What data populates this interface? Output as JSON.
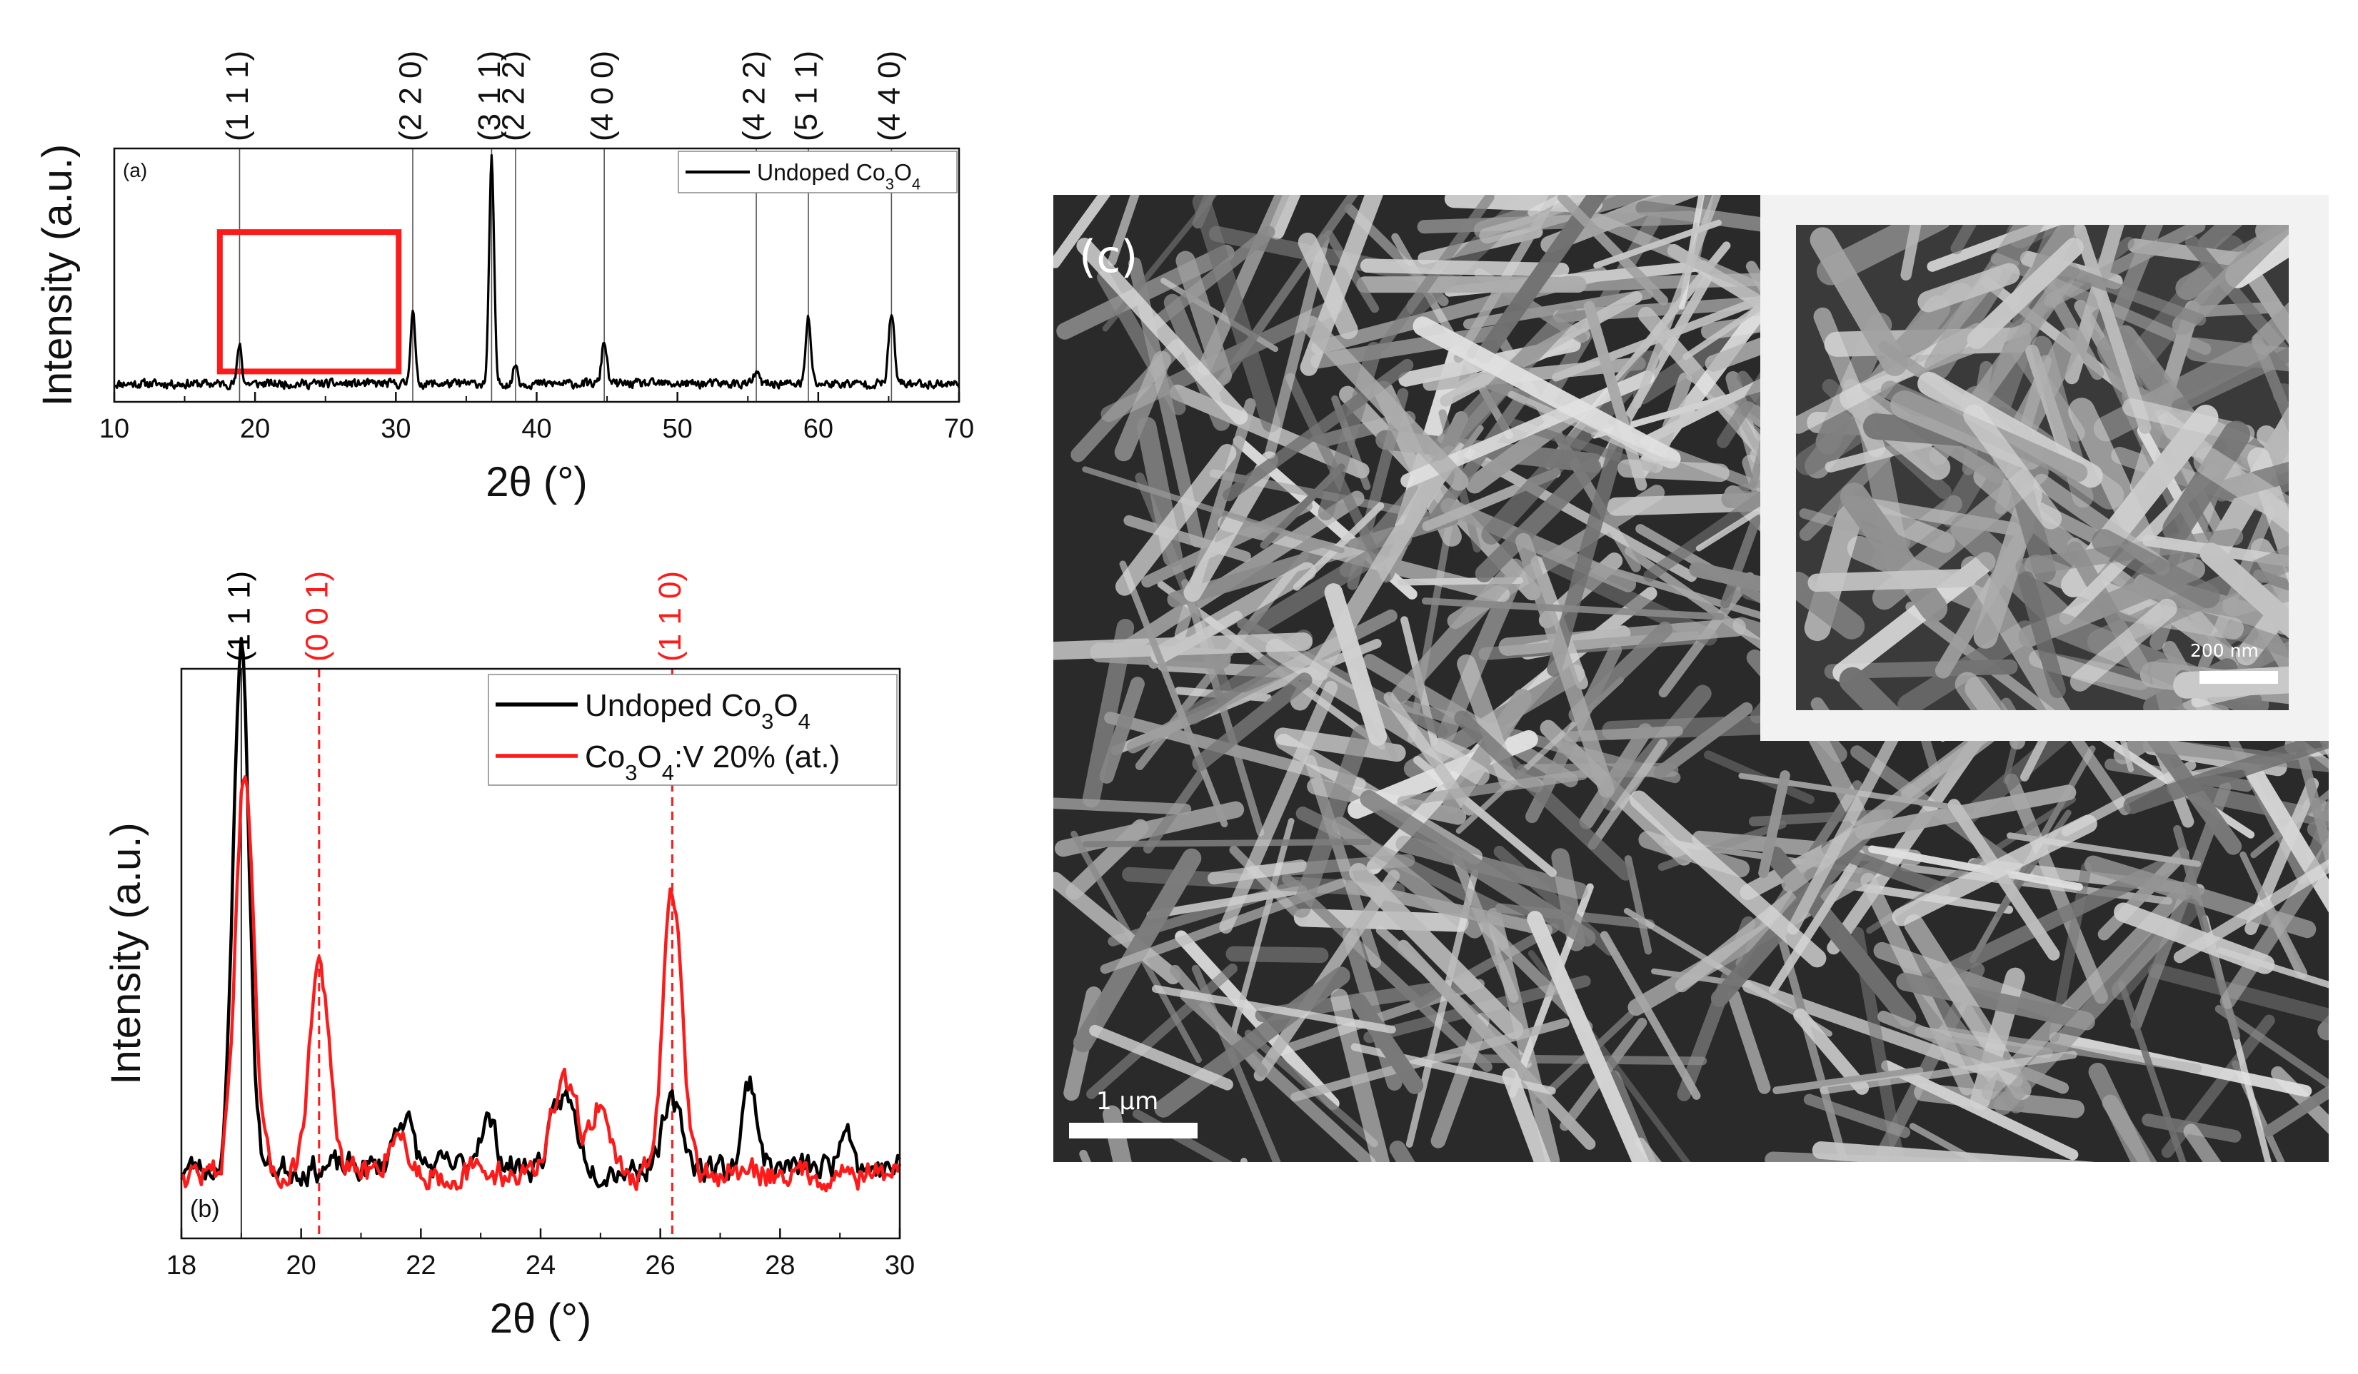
{
  "chart_data": [
    {
      "type": "line",
      "panel_label": "(a)",
      "xlabel": "2θ (°)",
      "ylabel": "Intensity (a.u.)",
      "xlim": [
        10,
        70
      ],
      "xticks": [
        10,
        20,
        30,
        40,
        50,
        60,
        70
      ],
      "legend": {
        "position": "top-right",
        "entries": [
          {
            "name": "Undoped Co3O4",
            "base": "Undoped Co",
            "s1": "3",
            "mid": "O",
            "s2": "4"
          }
        ]
      },
      "reflections": [
        {
          "label": "(1 1 1)",
          "x": 18.9
        },
        {
          "label": "(2 2 0)",
          "x": 31.2
        },
        {
          "label": "(3 1 1)",
          "x": 36.8
        },
        {
          "label": "(2 2 2)",
          "x": 38.5
        },
        {
          "label": "(4 0 0)",
          "x": 44.8
        },
        {
          "label": "(4 2 2)",
          "x": 55.6
        },
        {
          "label": "(5 1 1)",
          "x": 59.3
        },
        {
          "label": "(4 4 0)",
          "x": 65.2
        }
      ],
      "highlight_region": {
        "x": [
          17.5,
          30.2
        ],
        "color": "#ff1a1a"
      },
      "series": [
        {
          "name": "Undoped Co3O4",
          "color": "#000000",
          "baseline": 0.08,
          "peaks": [
            {
              "x": 18.9,
              "height": 0.18,
              "width": 0.15
            },
            {
              "x": 31.2,
              "height": 0.33,
              "width": 0.16
            },
            {
              "x": 36.8,
              "height": 1.0,
              "width": 0.17
            },
            {
              "x": 38.5,
              "height": 0.09,
              "width": 0.15
            },
            {
              "x": 44.8,
              "height": 0.19,
              "width": 0.18
            },
            {
              "x": 55.6,
              "height": 0.05,
              "width": 0.18
            },
            {
              "x": 59.3,
              "height": 0.29,
              "width": 0.18
            },
            {
              "x": 65.2,
              "height": 0.31,
              "width": 0.2
            }
          ]
        }
      ]
    },
    {
      "type": "line",
      "panel_label": "(b)",
      "xlabel": "2θ (°)",
      "ylabel": "Intensity (a.u.)",
      "xlim": [
        18,
        30
      ],
      "xticks": [
        18,
        20,
        22,
        24,
        26,
        28,
        30
      ],
      "legend": {
        "position": "top-right",
        "entries": [
          {
            "name": "Undoped Co3O4",
            "base": "Undoped Co",
            "s1": "3",
            "mid": "O",
            "s2": "4",
            "tail": "",
            "color": "#000000"
          },
          {
            "name": "Co3O4:V 20% (at.)",
            "base": "Co",
            "s1": "3",
            "mid": "O",
            "s2": "4",
            "tail": ":V 20% (at.)",
            "color": "#ff1a1a"
          }
        ]
      },
      "reflections": [
        {
          "label": "(1 1 1)",
          "x": 19.0,
          "color": "#000000",
          "style": "solid"
        },
        {
          "label": "(0 0 1)",
          "x": 20.3,
          "color": "#ff1a1a",
          "style": "dashed"
        },
        {
          "label": "(1 1 0)",
          "x": 26.2,
          "color": "#ff1a1a",
          "style": "dashed"
        }
      ],
      "series": [
        {
          "name": "Undoped Co3O4",
          "color": "#000000",
          "baseline": 0.13,
          "peaks": [
            {
              "x": 19.0,
              "height": 0.97,
              "width": 0.13
            },
            {
              "x": 21.7,
              "height": 0.1,
              "width": 0.15
            },
            {
              "x": 23.1,
              "height": 0.09,
              "width": 0.15
            },
            {
              "x": 24.4,
              "height": 0.13,
              "width": 0.2
            },
            {
              "x": 26.2,
              "height": 0.11,
              "width": 0.18
            },
            {
              "x": 27.5,
              "height": 0.16,
              "width": 0.12
            },
            {
              "x": 29.1,
              "height": 0.1,
              "width": 0.1
            }
          ]
        },
        {
          "name": "Co3O4:V 20% (at.)",
          "color": "#ff1a1a",
          "baseline": 0.12,
          "peaks": [
            {
              "x": 19.05,
              "height": 0.73,
              "width": 0.15
            },
            {
              "x": 20.3,
              "height": 0.39,
              "width": 0.16
            },
            {
              "x": 21.6,
              "height": 0.08,
              "width": 0.15
            },
            {
              "x": 24.4,
              "height": 0.16,
              "width": 0.22
            },
            {
              "x": 25.0,
              "height": 0.13,
              "width": 0.15
            },
            {
              "x": 26.2,
              "height": 0.53,
              "width": 0.15
            }
          ]
        }
      ]
    }
  ],
  "micrograph": {
    "panel_label": "(c)",
    "scale_bar": "1 µm",
    "inset_scale_bar": "200 nm"
  }
}
